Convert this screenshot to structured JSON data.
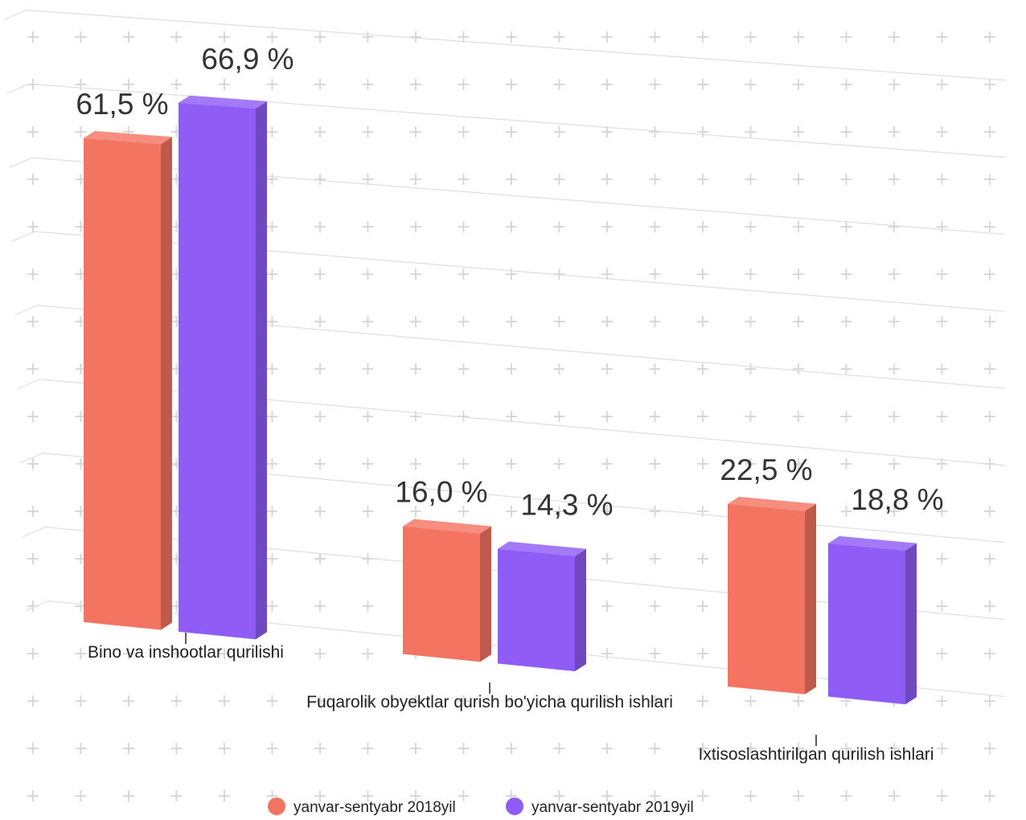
{
  "chart_data": {
    "type": "bar",
    "categories": [
      "Bino va inshootlar qurilishi",
      "Fuqarolik obyektlar qurish bo'yicha qurilish ishlari",
      "Ixtisoslashtirilgan qurilish ishlari"
    ],
    "series": [
      {
        "name": "yanvar-sentyabr 2018yil",
        "values": [
          61.5,
          16.0,
          22.5
        ],
        "labels": [
          "61,5 %",
          "16,0 %",
          "22,5 %"
        ],
        "color": "#f47462"
      },
      {
        "name": "yanvar-sentyabr 2019yil",
        "values": [
          66.9,
          14.3,
          18.8
        ],
        "labels": [
          "66,9 %",
          "14,3 %",
          "18,8 %"
        ],
        "color": "#8f5cf5"
      }
    ],
    "ylim": [
      0,
      75
    ],
    "grid": true,
    "legend": "bottom",
    "three_d": true
  }
}
